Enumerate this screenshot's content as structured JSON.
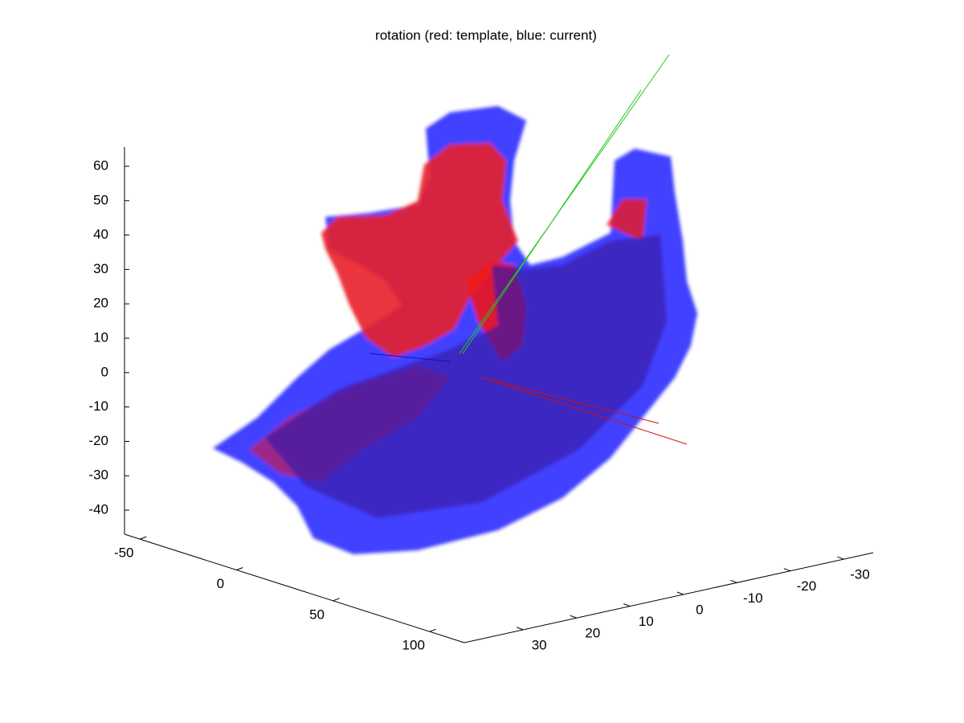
{
  "chart_data": {
    "type": "surface3d",
    "title": "rotation (red: template, blue: current)",
    "xlim": [
      -58,
      118
    ],
    "xticks": [
      -50,
      0,
      50,
      100
    ],
    "ylim": [
      41,
      -35.5
    ],
    "yticks": [
      30,
      20,
      10,
      0,
      -10,
      -20,
      -30
    ],
    "zlim": [
      -47,
      65.6
    ],
    "zticks": [
      60,
      50,
      40,
      30,
      20,
      10,
      0,
      -10,
      -20,
      -30,
      -40
    ]
  }
}
